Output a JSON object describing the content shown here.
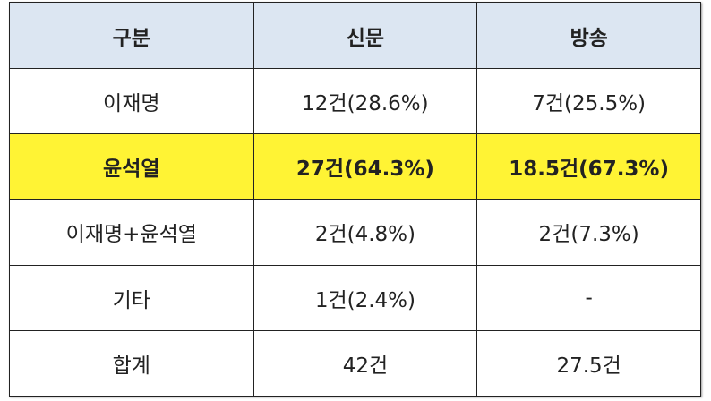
{
  "table": {
    "header": [
      "구분",
      "신문",
      "방송"
    ],
    "rows": [
      [
        "이재명",
        "12건(28.6%)",
        "7건(25.5%)"
      ],
      [
        "윤석열",
        "27건(64.3%)",
        "18.5건(67.3%)"
      ],
      [
        "이재명+윤석열",
        "2건(4.8%)",
        "2건(7.3%)"
      ],
      [
        "기타",
        "1건(2.4%)",
        "-"
      ],
      [
        "합계",
        "42건",
        "27.5건"
      ]
    ]
  }
}
